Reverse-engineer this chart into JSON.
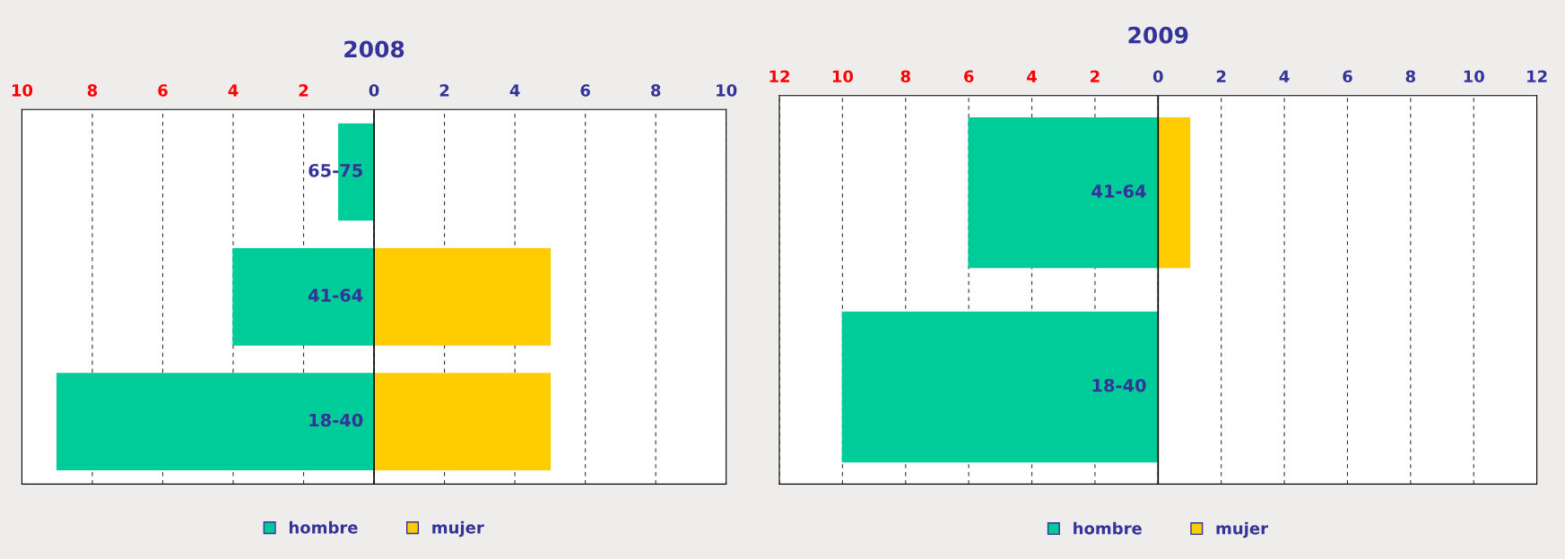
{
  "chart_data": [
    {
      "type": "bar",
      "orientation": "horizontal",
      "stacked": true,
      "title": "2008",
      "categories": [
        "65-75",
        "41-64",
        "18-40"
      ],
      "series": [
        {
          "name": "hombre",
          "color": "#00cc99",
          "values": [
            -1,
            -4,
            -9
          ]
        },
        {
          "name": "mujer",
          "color": "#ffcc00",
          "values": [
            0,
            5,
            5
          ]
        }
      ],
      "xlim": [
        -10,
        10
      ],
      "xticks": [
        {
          "value": -10,
          "label": "10"
        },
        {
          "value": -8,
          "label": "8"
        },
        {
          "value": -6,
          "label": "6"
        },
        {
          "value": -4,
          "label": "4"
        },
        {
          "value": -2,
          "label": "2"
        },
        0,
        2,
        4,
        6,
        8,
        10
      ],
      "grid": "x",
      "legend": "bottom"
    },
    {
      "type": "bar",
      "orientation": "horizontal",
      "stacked": true,
      "title": "2009",
      "categories": [
        "41-64",
        "18-40"
      ],
      "series": [
        {
          "name": "hombre",
          "color": "#00cc99",
          "values": [
            -6,
            -10
          ]
        },
        {
          "name": "mujer",
          "color": "#ffcc00",
          "values": [
            1,
            0
          ]
        }
      ],
      "xlim": [
        -12,
        12
      ],
      "xticks": [
        {
          "value": -12,
          "label": "12"
        },
        {
          "value": -10,
          "label": "10"
        },
        {
          "value": -8,
          "label": "8"
        },
        {
          "value": -6,
          "label": "6"
        },
        {
          "value": -4,
          "label": "4"
        },
        {
          "value": -2,
          "label": "2"
        },
        0,
        2,
        4,
        6,
        8,
        10,
        12
      ],
      "grid": "x",
      "legend": "bottom"
    }
  ]
}
